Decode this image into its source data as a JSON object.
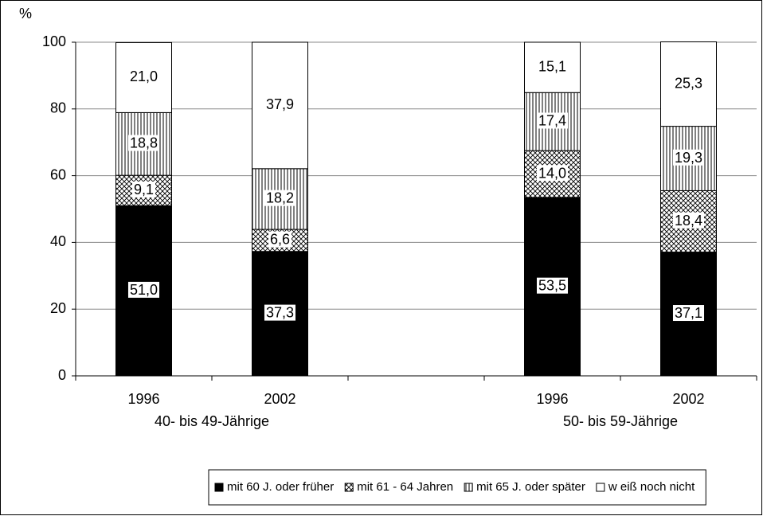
{
  "chart_data": {
    "type": "stacked-bar",
    "ylabel": "%",
    "categories": [
      "1996",
      "2002",
      null,
      "1996",
      "2002"
    ],
    "group_labels": [
      "40- bis 49-Jährige",
      "50- bis 59-Jährige"
    ],
    "ylim": [
      0,
      100
    ],
    "yticks": [
      0,
      20,
      40,
      60,
      80,
      100
    ],
    "grid": true,
    "series": [
      {
        "name": "mit 60 J. oder früher",
        "color": "#000000",
        "pattern": "solid",
        "values": [
          51.0,
          37.3,
          null,
          53.5,
          37.1
        ],
        "value_labels": [
          "51,0",
          "37,3",
          null,
          "53,5",
          "37,1"
        ]
      },
      {
        "name": "mit 61 - 64 Jahren",
        "color": "#000000",
        "pattern": "crosshatch",
        "values": [
          9.1,
          6.6,
          null,
          14.0,
          18.4
        ],
        "value_labels": [
          "9,1",
          "6,6",
          null,
          "14,0",
          "18,4"
        ]
      },
      {
        "name": "mit 65 J. oder später",
        "color": "#000000",
        "pattern": "vertical",
        "values": [
          18.8,
          18.2,
          null,
          17.4,
          19.3
        ],
        "value_labels": [
          "18,8",
          "18,2",
          null,
          "17,4",
          "19,3"
        ]
      },
      {
        "name": "w eiß noch nicht",
        "color": "#ffffff",
        "pattern": "none",
        "values": [
          21.0,
          37.9,
          null,
          15.1,
          25.3
        ],
        "value_labels": [
          "21,0",
          "37,9",
          null,
          "15,1",
          "25,3"
        ]
      }
    ],
    "legend": "bottom"
  }
}
